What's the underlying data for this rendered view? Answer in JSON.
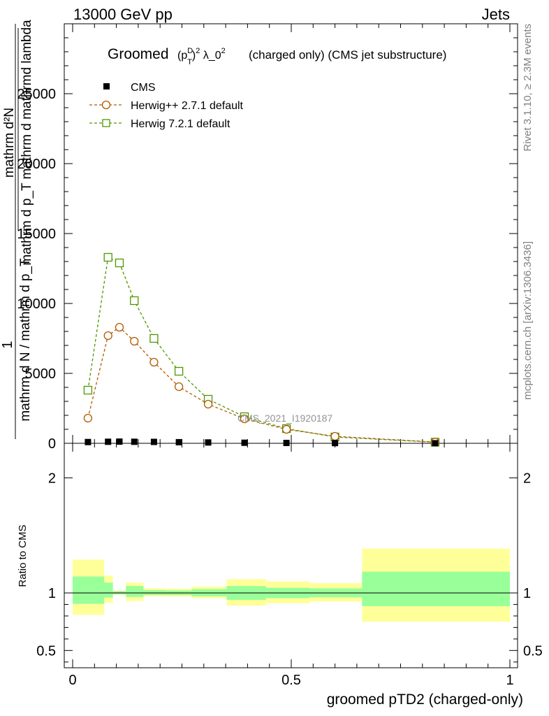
{
  "header": {
    "left": "13000 GeV pp",
    "right": "Jets"
  },
  "side_text": {
    "rivet": "Rivet 3.1.10, ≥ 2.3M events",
    "mcplots": "mcplots.cern.ch [arXiv:1306.3436]"
  },
  "plot_title": {
    "prefix": "Groomed",
    "formula": "(p_T^D)^2 λ_0^2",
    "suffix": "(charged only) (CMS jet substructure)"
  },
  "watermark": "CMS_2021_I1920187",
  "colors": {
    "data": "#000000",
    "herwigpp": "#b35900",
    "herwig7": "#4d9900",
    "band_inner": "#99ff99",
    "band_outer": "#ffff99"
  },
  "legend": [
    {
      "label": "CMS",
      "marker": "filled-square"
    },
    {
      "label": "Herwig++ 2.7.1 default",
      "marker": "open-circle"
    },
    {
      "label": "Herwig 7.2.1 default",
      "marker": "open-square"
    }
  ],
  "y_label_top": {
    "numerator": "mathrm d²N",
    "denominator": "mathrm d p_T mathrm d mathrmd lambda",
    "outer_numerator": "1",
    "outer_denominator": "mathrm d N / mathrm d p_T"
  },
  "y_label_ratio": "Ratio to CMS",
  "x_label": "groomed pTD2 (charged-only)",
  "chart_data": [
    {
      "type": "line",
      "xlim": [
        0,
        1
      ],
      "ylim": [
        0,
        30000
      ],
      "yticks": [
        {
          "value": 0,
          "label": "0"
        },
        {
          "value": 5000,
          "label": "5000"
        },
        {
          "value": 10000,
          "label": "10000"
        },
        {
          "value": 15000,
          "label": "15000"
        },
        {
          "value": 20000,
          "label": "20000"
        },
        {
          "value": 25000,
          "label": "25000"
        }
      ],
      "x": [
        0.035,
        0.081,
        0.107,
        0.141,
        0.186,
        0.243,
        0.31,
        0.393,
        0.489,
        0.6,
        0.829
      ],
      "series": [
        {
          "name": "CMS",
          "values": [
            90,
            110,
            120,
            110,
            100,
            80,
            60,
            40,
            25,
            15,
            5
          ]
        },
        {
          "name": "Herwig++ 2.7.1 default",
          "values": [
            1800,
            7700,
            8300,
            7300,
            5800,
            4050,
            2800,
            1750,
            1000,
            500,
            90
          ]
        },
        {
          "name": "Herwig 7.2.1 default",
          "values": [
            3800,
            13300,
            12900,
            10200,
            7500,
            5150,
            3150,
            1900,
            1050,
            450,
            80
          ]
        }
      ]
    },
    {
      "type": "area",
      "xlim": [
        0,
        1
      ],
      "ylim": [
        0.35,
        2.3
      ],
      "yticks": [
        {
          "value": 0.5,
          "label": "0.5"
        },
        {
          "value": 1,
          "label": "1"
        },
        {
          "value": 2,
          "label": "2"
        }
      ],
      "xticks": [
        {
          "value": 0,
          "label": "0"
        },
        {
          "value": 0.5,
          "label": "0.5"
        },
        {
          "value": 1,
          "label": "1"
        }
      ],
      "bins": [
        {
          "x0": 0.0,
          "x1": 0.072,
          "inner": [
            0.905,
            1.143
          ],
          "outer": [
            0.81,
            1.29
          ]
        },
        {
          "x0": 0.072,
          "x1": 0.092,
          "inner": [
            0.96,
            1.09
          ],
          "outer": [
            0.915,
            1.15
          ]
        },
        {
          "x0": 0.092,
          "x1": 0.122,
          "inner": [
            0.99,
            1.015
          ],
          "outer": [
            0.985,
            1.02
          ]
        },
        {
          "x0": 0.122,
          "x1": 0.162,
          "inner": [
            0.965,
            1.06
          ],
          "outer": [
            0.93,
            1.09
          ]
        },
        {
          "x0": 0.162,
          "x1": 0.212,
          "inner": [
            0.982,
            1.025
          ],
          "outer": [
            0.97,
            1.04
          ]
        },
        {
          "x0": 0.212,
          "x1": 0.272,
          "inner": [
            0.982,
            1.022
          ],
          "outer": [
            0.968,
            1.036
          ]
        },
        {
          "x0": 0.272,
          "x1": 0.352,
          "inner": [
            0.97,
            1.033
          ],
          "outer": [
            0.955,
            1.055
          ]
        },
        {
          "x0": 0.352,
          "x1": 0.442,
          "inner": [
            0.94,
            1.06
          ],
          "outer": [
            0.89,
            1.12
          ]
        },
        {
          "x0": 0.442,
          "x1": 0.542,
          "inner": [
            0.955,
            1.045
          ],
          "outer": [
            0.91,
            1.1
          ]
        },
        {
          "x0": 0.542,
          "x1": 0.662,
          "inner": [
            0.962,
            1.04
          ],
          "outer": [
            0.925,
            1.085
          ]
        },
        {
          "x0": 0.662,
          "x1": 1.0,
          "inner": [
            0.885,
            1.185
          ],
          "outer": [
            0.75,
            1.385
          ]
        }
      ],
      "reference": 1
    }
  ]
}
